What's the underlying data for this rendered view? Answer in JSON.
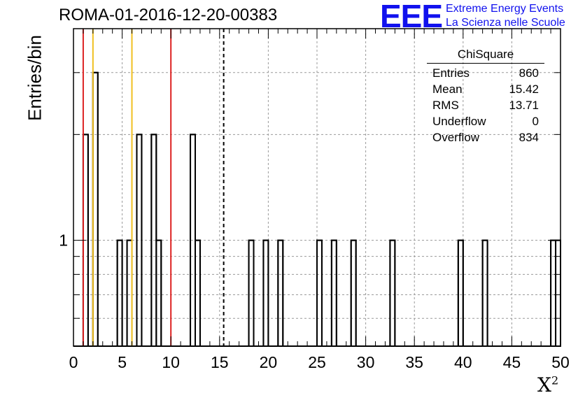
{
  "chart_data": {
    "type": "bar",
    "title": "ROMA-01-2016-12-20-00383",
    "xlabel": "X",
    "xlabel_sup": "2",
    "ylabel": "Entries/bin",
    "xlim": [
      0,
      50
    ],
    "ylim": [
      0.5,
      4
    ],
    "yscale": "log",
    "grid": true,
    "bin_width": 0.5,
    "x_ticks": [
      "0",
      "5",
      "10",
      "15",
      "20",
      "25",
      "30",
      "35",
      "40",
      "45",
      "50"
    ],
    "y_ticks": [
      "1"
    ],
    "bins": [
      {
        "x": 1.0,
        "value": 2
      },
      {
        "x": 2.0,
        "value": 3
      },
      {
        "x": 4.5,
        "value": 1
      },
      {
        "x": 5.5,
        "value": 1
      },
      {
        "x": 6.5,
        "value": 2
      },
      {
        "x": 8.0,
        "value": 2
      },
      {
        "x": 8.5,
        "value": 1
      },
      {
        "x": 12.0,
        "value": 2
      },
      {
        "x": 12.5,
        "value": 1
      },
      {
        "x": 18.0,
        "value": 1
      },
      {
        "x": 19.5,
        "value": 1
      },
      {
        "x": 21.0,
        "value": 1
      },
      {
        "x": 25.0,
        "value": 1
      },
      {
        "x": 26.5,
        "value": 1
      },
      {
        "x": 28.5,
        "value": 1
      },
      {
        "x": 32.5,
        "value": 1
      },
      {
        "x": 39.5,
        "value": 1
      },
      {
        "x": 42.0,
        "value": 1
      },
      {
        "x": 49.0,
        "value": 1
      },
      {
        "x": 49.5,
        "value": 1
      }
    ],
    "vertical_lines": [
      {
        "x": 1.0,
        "color": "#dd2222",
        "style": "solid"
      },
      {
        "x": 2.0,
        "color": "#f0c020",
        "style": "solid"
      },
      {
        "x": 6.0,
        "color": "#f0c020",
        "style": "solid"
      },
      {
        "x": 10.0,
        "color": "#dd2222",
        "style": "solid"
      },
      {
        "x": 15.42,
        "color": "#000000",
        "style": "dashed"
      }
    ],
    "stats_box": {
      "title": "ChiSquare",
      "rows": [
        {
          "label": "Entries",
          "value": "860"
        },
        {
          "label": "Mean",
          "value": "15.42"
        },
        {
          "label": "RMS",
          "value": "13.71"
        },
        {
          "label": "Underflow",
          "value": "0"
        },
        {
          "label": "Overflow",
          "value": "834"
        }
      ]
    }
  },
  "logo": {
    "mark": "EEE",
    "line1": "Extreme Energy Events",
    "line2": "La Scienza nelle Scuole",
    "color": "#1111ee"
  }
}
